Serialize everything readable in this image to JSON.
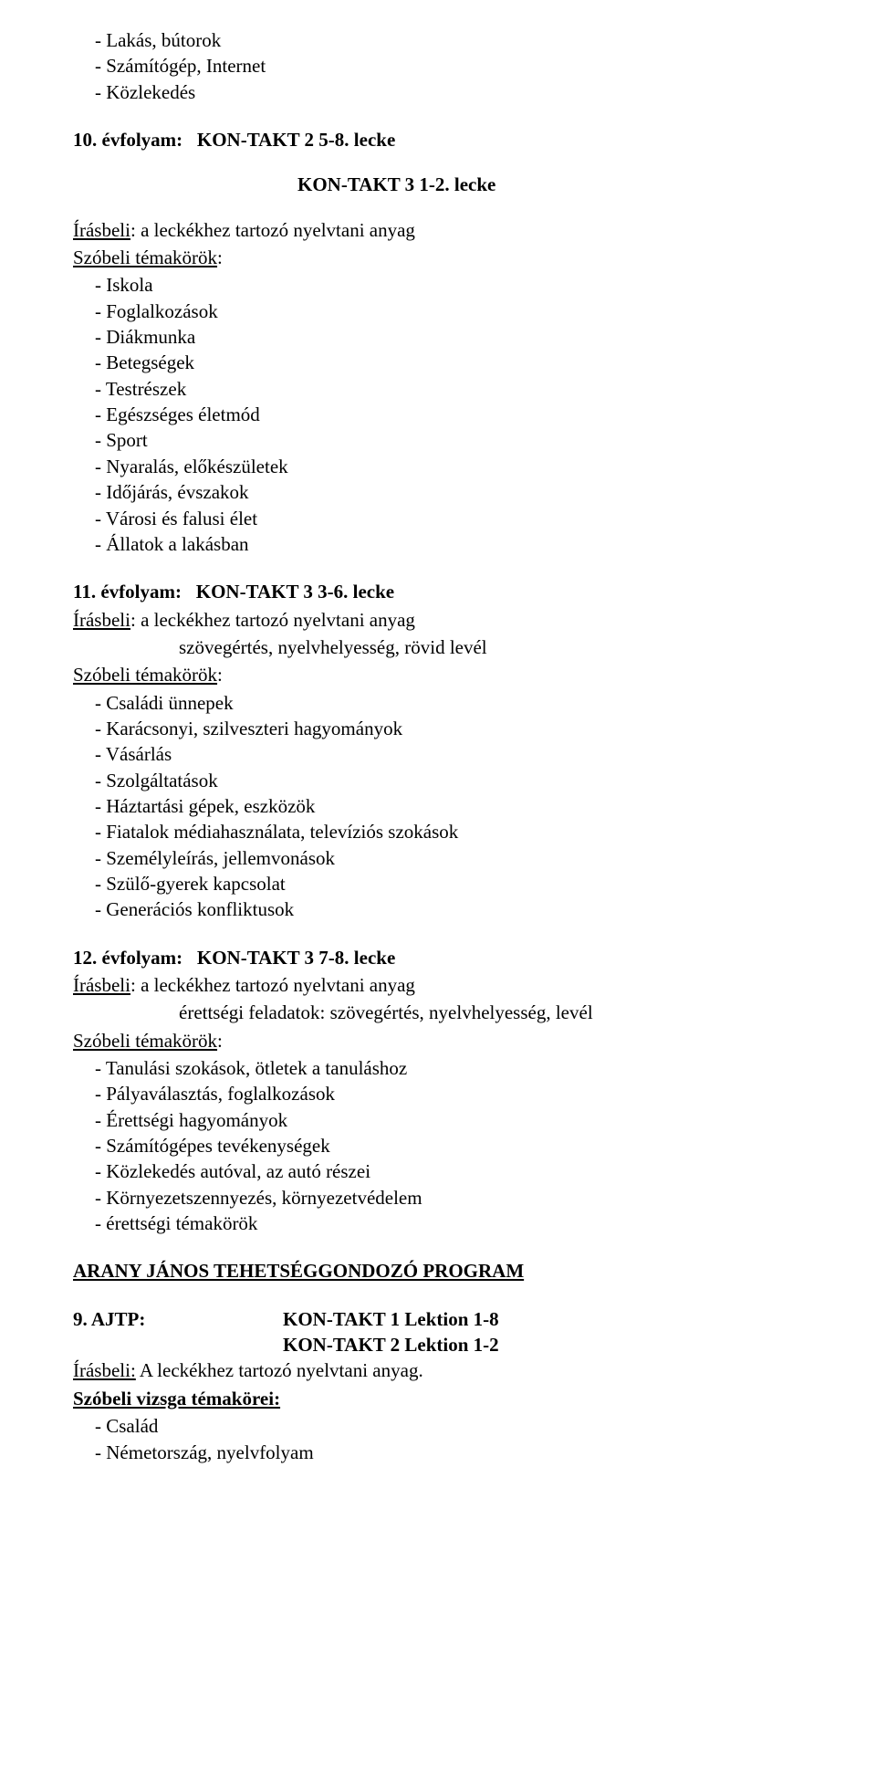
{
  "pre_list_items": [
    "Lakás, bútorok",
    "Számítógép, Internet",
    "Közlekedés"
  ],
  "g10": {
    "title_prefix": "10. évfolyam:",
    "book1": "KON-TAKT 2   5-8. lecke",
    "book2": "KON-TAKT 3   1-2. lecke",
    "irasbeli_label": "Írásbeli",
    "irasbeli_text": ": a leckékhez tartozó nyelvtani anyag",
    "szobeli_label": "Szóbeli témakörök",
    "items": [
      "Iskola",
      "Foglalkozások",
      "Diákmunka",
      "Betegségek",
      "Testrészek",
      "Egészséges életmód",
      "Sport",
      "Nyaralás, előkészületek",
      "Időjárás, évszakok",
      "Városi és falusi élet",
      "Állatok a lakásban"
    ]
  },
  "g11": {
    "title_prefix": "11. évfolyam:",
    "book": "KON-TAKT 3   3-6. lecke",
    "irasbeli_label": "Írásbeli",
    "irasbeli_text": ": a leckékhez tartozó nyelvtani anyag",
    "irasbeli_extra": "szövegértés, nyelvhelyesség, rövid levél",
    "szobeli_label": "Szóbeli témakörök",
    "items": [
      "Családi ünnepek",
      "Karácsonyi, szilveszteri hagyományok",
      "Vásárlás",
      "Szolgáltatások",
      "Háztartási gépek, eszközök",
      "Fiatalok médiahasználata, televíziós szokások",
      "Személyleírás, jellemvonások",
      "Szülő-gyerek kapcsolat",
      "Generációs konfliktusok"
    ]
  },
  "g12": {
    "title_prefix": "12. évfolyam:",
    "book": "KON-TAKT 3   7-8. lecke",
    "irasbeli_label": "Írásbeli",
    "irasbeli_text": ": a leckékhez tartozó nyelvtani anyag",
    "irasbeli_extra": "érettségi feladatok: szövegértés, nyelvhelyesség, levél",
    "szobeli_label": "Szóbeli témakörök",
    "items": [
      "Tanulási szokások, ötletek a tanuláshoz",
      "Pályaválasztás, foglalkozások",
      "Érettségi hagyományok",
      "Számítógépes tevékenységek",
      "Közlekedés autóval, az autó részei",
      "Környezetszennyezés, környezetvédelem"
    ],
    "plus_item": "érettségi témakörök"
  },
  "section_heading": "ARANY JÁNOS TEHETSÉGGONDOZÓ PROGRAM",
  "ajtp": {
    "title_prefix": "9. AJTP:",
    "book1": "KON-TAKT 1   Lektion 1-8",
    "book2": "KON-TAKT 2   Lektion 1-2",
    "irasbeli_label": "Írásbeli:",
    "irasbeli_text": " A leckékhez tartozó nyelvtani anyag.",
    "szobeli_label": "Szóbeli vizsga témakörei:",
    "items": [
      "Család",
      "Németország, nyelvfolyam"
    ]
  },
  "colors": {
    "text": "#000000",
    "background": "#ffffff"
  },
  "typography": {
    "body_font": "serif",
    "body_size_pt": 16,
    "heading_weight": "bold"
  }
}
